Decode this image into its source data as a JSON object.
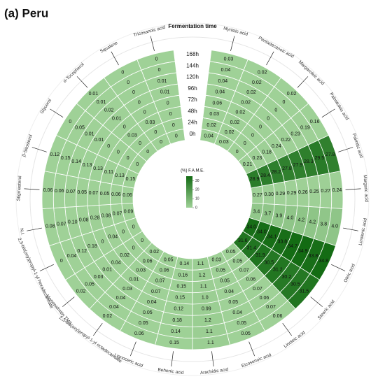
{
  "chart_data": {
    "type": "radial-heatmap",
    "title": "(a) Peru",
    "time_axis_title": "Fermentation time",
    "times": [
      "0h",
      "24h",
      "48h",
      "72h",
      "96h",
      "120h",
      "144h",
      "168h"
    ],
    "series": [
      {
        "name": "Myristic acid",
        "values": [
          0.04,
          0.02,
          0.03,
          0.06,
          0.04,
          0.04,
          0.04,
          0.03
        ],
        "value_labels": [
          "0.04",
          "0.02",
          "0.03",
          "0.06",
          "0.04",
          "0.04",
          "0.04",
          "0.03"
        ]
      },
      {
        "name": "Pentadecanoic acid",
        "values": [
          0.03,
          0.02,
          0.02,
          0.02,
          0.02,
          0.02,
          0.02,
          0.02
        ],
        "value_labels": [
          "0.03",
          "0.02",
          "0.02",
          "0.02",
          "0.02",
          "0.02",
          "0.02",
          "0.02"
        ]
      },
      {
        "name": "Margaroleic acid",
        "values": [
          0,
          0,
          0,
          0,
          0,
          0,
          0,
          0.02
        ],
        "value_labels": [
          "0",
          "0",
          "0",
          "0",
          "0",
          "0",
          "0",
          "0.02"
        ]
      },
      {
        "name": "Palmitoleic acid",
        "values": [
          0.21,
          0.23,
          0.18,
          0.24,
          0.22,
          0.23,
          0.19,
          0.16
        ],
        "value_labels": [
          "0.21",
          "0.23",
          "0.18",
          "0.24",
          "0.22",
          "0.23",
          "0.19",
          "0.16"
        ]
      },
      {
        "name": "Palmitic acid",
        "values": [
          28.9,
          28.4,
          28.2,
          27.8,
          27.9,
          28.3,
          29.5,
          27.8
        ],
        "value_labels": [
          "28.9",
          "28.4",
          "28.2",
          "27.8",
          "27.9",
          "28.3",
          "29.5",
          "27.8"
        ]
      },
      {
        "name": "Margaric acid",
        "values": [
          0.27,
          0.3,
          0.29,
          0.29,
          0.26,
          0.25,
          0.27,
          0.24
        ],
        "value_labels": [
          "0.27",
          "0.30",
          "0.29",
          "0.29",
          "0.26",
          "0.25",
          "0.27",
          "0.24"
        ]
      },
      {
        "name": "Linolenic acid",
        "values": [
          3.4,
          3.7,
          3.9,
          4,
          4.2,
          4.2,
          3.8,
          4
        ],
        "value_labels": [
          "3.4",
          "3.7",
          "3.9",
          "4.0",
          "4.2",
          "4.2",
          "3.8",
          "4.0"
        ]
      },
      {
        "name": "Oleic acid",
        "values": [
          34,
          34,
          34.1,
          33.8,
          34.7,
          34.9,
          33.8,
          34.8
        ],
        "value_labels": [
          "34.0",
          "34.0",
          "34.1",
          "33.8",
          "34.7",
          "34.9",
          "33.8",
          "34.8"
        ]
      },
      {
        "name": "Stearic acid",
        "values": [
          31.6,
          31.4,
          31.9,
          30.5,
          31.2,
          30.2,
          30.5,
          31.5
        ],
        "value_labels": [
          "31.6",
          "31.4",
          "31.9",
          "30.5",
          "31.2",
          "30.2",
          "30.5",
          "31.5"
        ]
      },
      {
        "name": "Linoleic acid",
        "values": [
          0.05,
          0.05,
          0.07,
          0.06,
          0.07,
          0.06,
          0.07,
          0.06
        ],
        "value_labels": [
          "0.05",
          "0.05",
          "0.07",
          "0.06",
          "0.07",
          "0.06",
          "0.07",
          "0.06"
        ]
      },
      {
        "name": "Eicosenoic acid",
        "values": [
          0.03,
          0.05,
          0.05,
          0.04,
          0.05,
          0.04,
          0.05,
          0.05
        ],
        "value_labels": [
          "0.03",
          "0.05",
          "0.05",
          "0.04",
          "0.05",
          "0.04",
          "0.05",
          "0.05"
        ]
      },
      {
        "name": "Arachidic acid",
        "values": [
          1.1,
          1.2,
          1.1,
          1,
          0.99,
          1.2,
          1.1,
          1.1
        ],
        "value_labels": [
          "1.1",
          "1.2",
          "1.1",
          "1.0",
          "0.99",
          "1.2",
          "1.1",
          "1.1"
        ]
      },
      {
        "name": "Behenic acid",
        "values": [
          0.14,
          0.16,
          0.15,
          0.15,
          0.12,
          0.18,
          0.14,
          0.15
        ],
        "value_labels": [
          "0.14",
          "0.16",
          "0.15",
          "0.15",
          "0.12",
          "0.18",
          "0.14",
          "0.15"
        ]
      },
      {
        "name": "Lignoceric acid",
        "values": [
          0.05,
          0.06,
          0.07,
          0.07,
          0.04,
          0.05,
          0.05,
          0.06
        ],
        "value_labels": [
          "0.05",
          "0.06",
          "0.07",
          "0.07",
          "0.04",
          "0.05",
          "0.05",
          "0.06"
        ]
      },
      {
        "name": "2,3-bis(oxy)propyl-1-yl octadecanoate",
        "values": [
          0.02,
          0.06,
          0.03,
          0.01,
          0.03,
          0.04,
          0.04,
          0.02
        ],
        "value_labels": [
          "0.02",
          "0.06",
          "0.03",
          "0.01",
          "0.03",
          "0.04",
          "0.04",
          "0.02"
        ]
      },
      {
        "name": "Monopalmitin TMS",
        "values": [
          0,
          0,
          0.02,
          0.04,
          0.01,
          0.03,
          0.05,
          0.02
        ],
        "value_labels": [
          "0",
          "0",
          "0.02",
          "0.04",
          "0.01",
          "0.03",
          "0.05",
          "0.02"
        ]
      },
      {
        "name": "2,3-bis(oxy)propyl-1-yl hexadecanoate",
        "values": [
          0,
          0,
          0.04,
          0,
          0.18,
          0.12,
          0.04,
          0
        ],
        "value_labels": [
          "0",
          "0",
          "0.04",
          "0",
          "0.18",
          "0.12",
          "0.04",
          "0"
        ]
      },
      {
        "name": "N.I.",
        "values": [
          0.09,
          0.07,
          0.08,
          0.28,
          0.08,
          0.1,
          0.07,
          0.08
        ],
        "value_labels": [
          "0.09",
          "0.07",
          "0.08",
          "0.28",
          "0.08",
          "0.10",
          "0.07",
          "0.08"
        ]
      },
      {
        "name": "Stigmasterol",
        "values": [
          0.06,
          0.06,
          0.05,
          0.07,
          0.05,
          0.07,
          0.06,
          0.06
        ],
        "value_labels": [
          "0.06",
          "0.06",
          "0.05",
          "0.07",
          "0.05",
          "0.07",
          "0.06",
          "0.06"
        ]
      },
      {
        "name": "β-Sitosterol",
        "values": [
          0.15,
          0.13,
          0.11,
          0.13,
          0.13,
          0.14,
          0.15,
          0.12
        ],
        "value_labels": [
          "0.15",
          "0.13",
          "0.11",
          "0.13",
          "0.13",
          "0.14",
          "0.15",
          "0.12"
        ]
      },
      {
        "name": "Glycerol",
        "values": [
          0,
          0,
          0,
          0,
          0.01,
          0.01,
          0.05,
          0
        ],
        "value_labels": [
          "0",
          "0",
          "0",
          "0",
          "0.01",
          "0.01",
          "0.05",
          "0"
        ]
      },
      {
        "name": "α-Tocopherol",
        "values": [
          0,
          0,
          0.03,
          0,
          0.01,
          0.02,
          0.01,
          0.01
        ],
        "value_labels": [
          "0",
          "0",
          "0.03",
          "0",
          "0.01",
          "0.02",
          "0.01",
          "0.01"
        ]
      },
      {
        "name": "Squalene",
        "values": [
          0,
          0,
          0.03,
          0,
          0,
          0,
          0,
          0
        ],
        "value_labels": [
          "0",
          "0",
          "0.03",
          "0",
          "0",
          "0",
          "0",
          "0"
        ]
      },
      {
        "name": "Tricosanoic acid",
        "values": [
          0,
          0,
          0,
          0,
          0.01,
          0.01,
          0,
          0
        ],
        "value_labels": [
          "0",
          "0",
          "0",
          "0",
          "0.01",
          "0.01",
          "0",
          "0"
        ]
      }
    ],
    "colorbar": {
      "title": "(%) F.A.M.E.",
      "lim": [
        0,
        35
      ],
      "ticks": [
        0,
        10,
        20,
        30
      ],
      "colors": [
        "#9fd197",
        "#136b13"
      ]
    }
  }
}
